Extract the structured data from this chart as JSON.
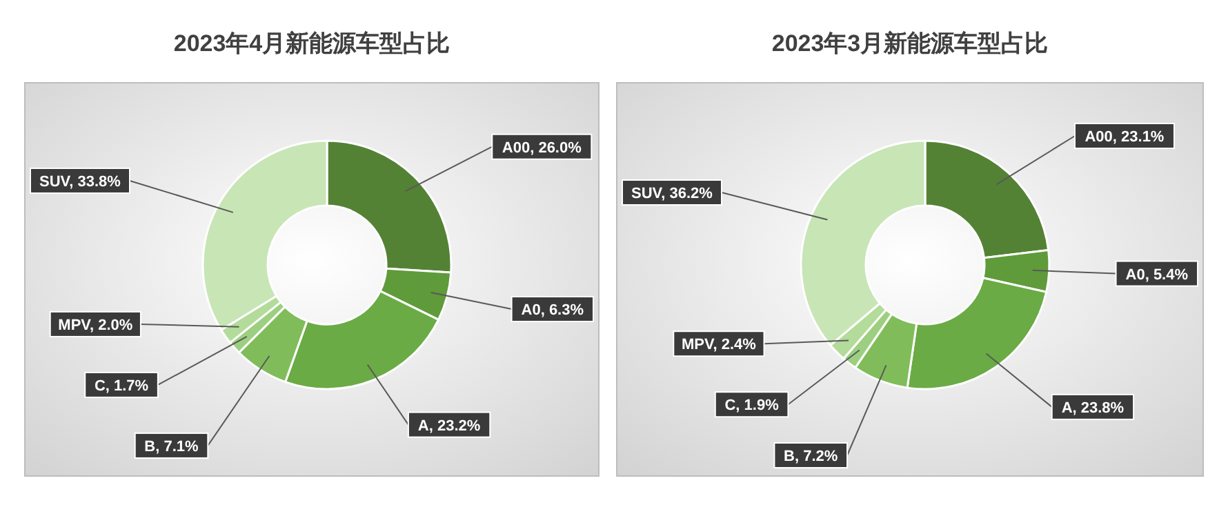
{
  "chart_data": [
    {
      "type": "donut",
      "title": "2023年4月新能源车型占比",
      "categories": [
        "A00",
        "A0",
        "A",
        "B",
        "C",
        "MPV",
        "SUV"
      ],
      "values": [
        26.0,
        6.3,
        23.2,
        7.1,
        1.7,
        2.0,
        33.8
      ],
      "colors": [
        "#548235",
        "#5f9b3a",
        "#6aab45",
        "#80bd5a",
        "#9dcf80",
        "#b3db9a",
        "#c8e5b6"
      ],
      "value_labels": [
        "26.0%",
        "6.3%",
        "23.2%",
        "7.1%",
        "1.7%",
        "2.0%",
        "33.8%"
      ]
    },
    {
      "type": "donut",
      "title": "2023年3月新能源车型占比",
      "categories": [
        "A00",
        "A0",
        "A",
        "B",
        "C",
        "MPV",
        "SUV"
      ],
      "values": [
        23.1,
        5.4,
        23.8,
        7.2,
        1.9,
        2.4,
        36.2
      ],
      "colors": [
        "#548235",
        "#5f9b3a",
        "#6aab45",
        "#80bd5a",
        "#9dcf80",
        "#b3db9a",
        "#c8e5b6"
      ],
      "value_labels": [
        "23.1%",
        "5.4%",
        "23.8%",
        "7.2%",
        "1.9%",
        "2.4%",
        "36.2%"
      ]
    }
  ]
}
